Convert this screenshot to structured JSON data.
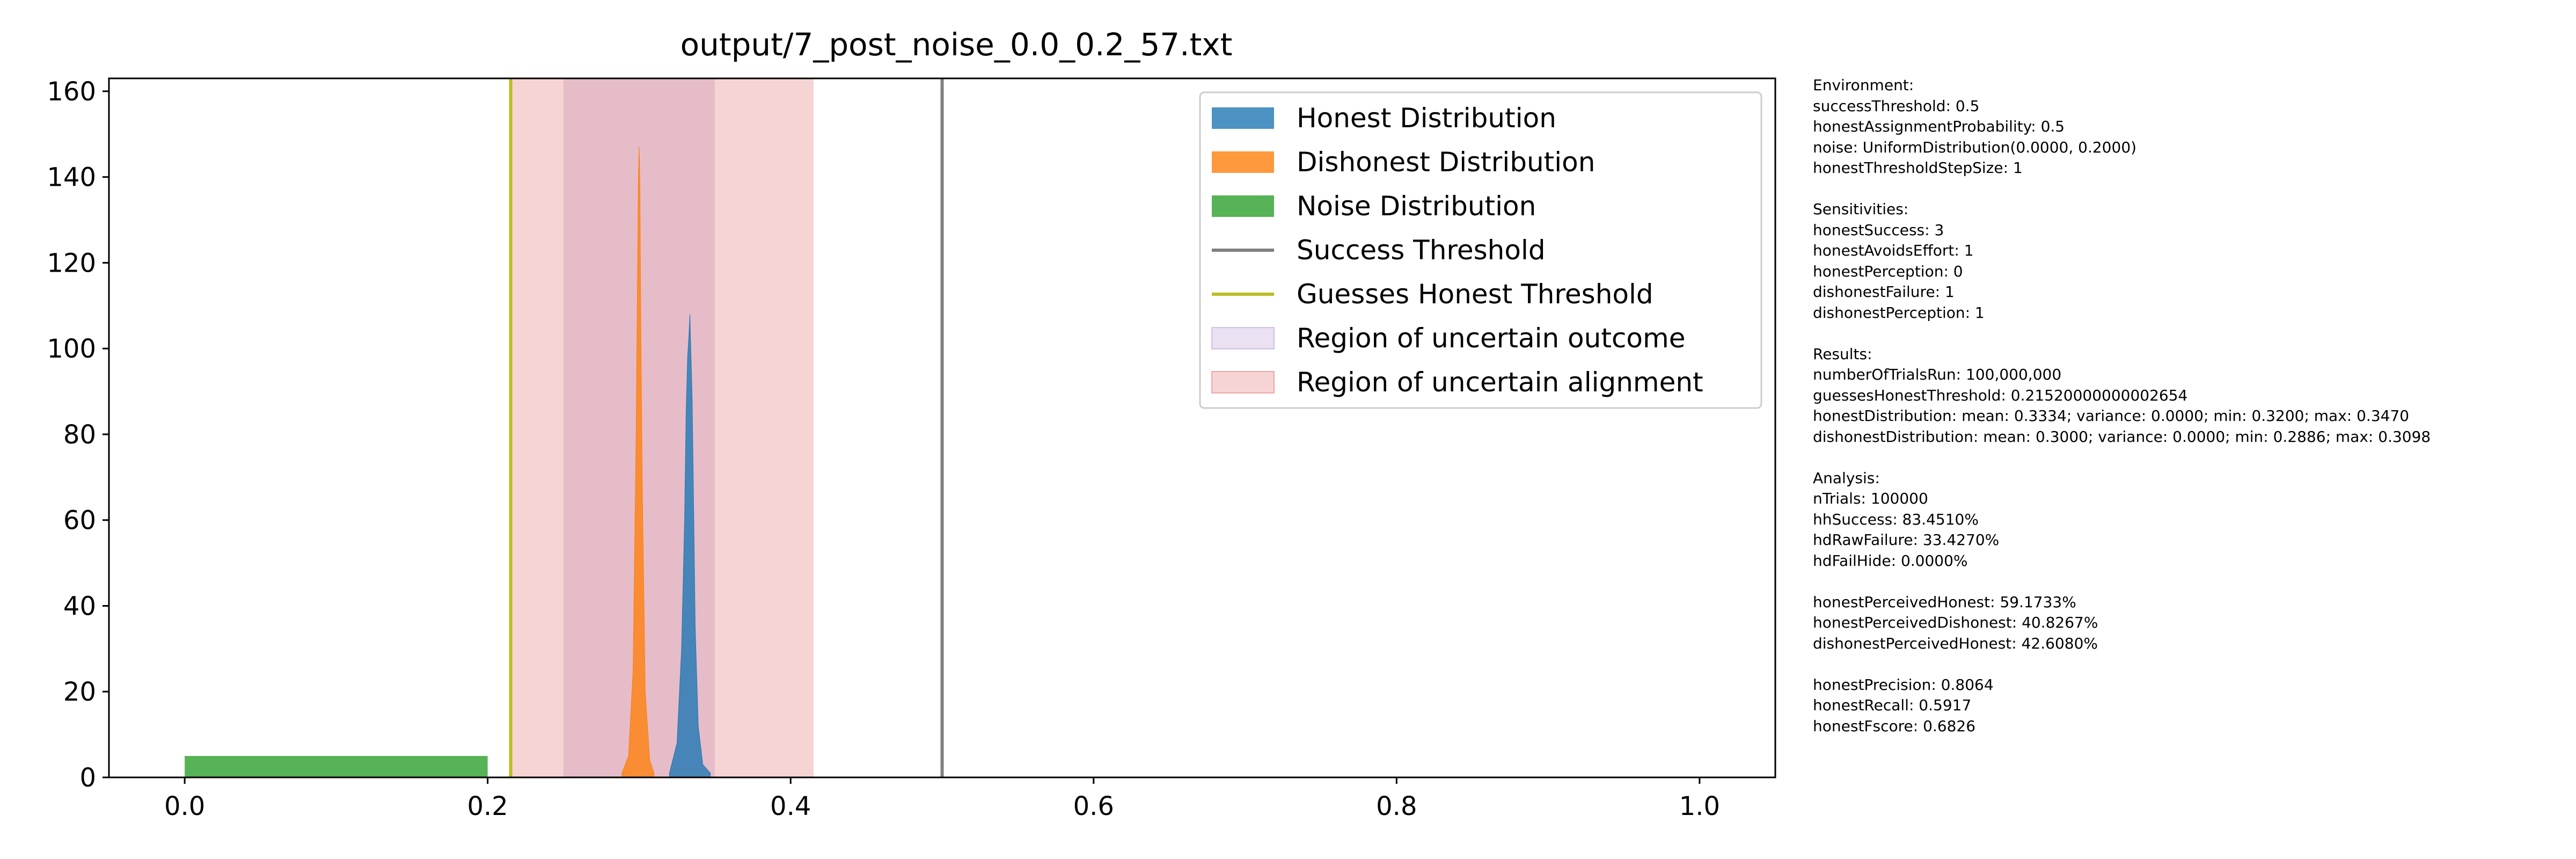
{
  "chart_data": {
    "type": "histogram",
    "title": "output/7_post_noise_0.0_0.2_57.txt",
    "xlabel": "",
    "ylabel": "",
    "xlim": [
      -0.05,
      1.05
    ],
    "ylim": [
      0,
      163
    ],
    "x_ticks": [
      0.0,
      0.2,
      0.4,
      0.6,
      0.8,
      1.0
    ],
    "x_tick_labels": [
      "0.0",
      "0.2",
      "0.4",
      "0.6",
      "0.8",
      "1.0"
    ],
    "y_ticks": [
      0,
      20,
      40,
      60,
      80,
      100,
      120,
      140,
      160
    ],
    "y_tick_labels": [
      "0",
      "20",
      "40",
      "60",
      "80",
      "100",
      "120",
      "140",
      "160"
    ],
    "grid": false,
    "legend_position": "upper right",
    "colors": {
      "honest": "#1f77b4",
      "dishonest": "#ff7f0e",
      "noise": "#2ca02c",
      "success_threshold": "#808080",
      "guess_threshold": "#bcbd22",
      "uncertain_outcome": "#9467bd",
      "uncertain_alignment": "#d62728"
    },
    "series": [
      {
        "name": "Honest Distribution",
        "key": "honest",
        "kind": "histogram",
        "x": [
          0.32,
          0.325,
          0.328,
          0.33,
          0.331,
          0.332,
          0.333,
          0.3335,
          0.334,
          0.3345,
          0.335,
          0.336,
          0.337,
          0.339,
          0.342,
          0.347
        ],
        "values": [
          1,
          8,
          30,
          60,
          85,
          98,
          104,
          108,
          101,
          95,
          88,
          62,
          35,
          12,
          3,
          1
        ]
      },
      {
        "name": "Dishonest Distribution",
        "key": "dishonest",
        "kind": "histogram",
        "x": [
          0.2886,
          0.293,
          0.296,
          0.298,
          0.299,
          0.2995,
          0.3,
          0.3005,
          0.301,
          0.302,
          0.304,
          0.307,
          0.3098
        ],
        "values": [
          1,
          5,
          25,
          80,
          120,
          140,
          147,
          138,
          110,
          70,
          20,
          4,
          1
        ]
      },
      {
        "name": "Noise Distribution",
        "key": "noise",
        "kind": "uniform",
        "range": [
          0.0,
          0.2
        ],
        "value": 5
      }
    ],
    "lines": [
      {
        "name": "Success Threshold",
        "key": "success_threshold",
        "x": 0.5
      },
      {
        "name": "Guesses Honest Threshold",
        "key": "guess_threshold",
        "x": 0.2152
      }
    ],
    "regions": [
      {
        "name": "Region of uncertain outcome",
        "key": "uncertain_outcome",
        "x": [
          0.25,
          0.35
        ],
        "alpha": 0.2
      },
      {
        "name": "Region of uncertain alignment",
        "key": "uncertain_alignment",
        "x": [
          0.2152,
          0.4152
        ],
        "alpha": 0.2
      }
    ],
    "legend": [
      {
        "label": "Honest Distribution",
        "key": "honest",
        "kind": "patch"
      },
      {
        "label": "Dishonest Distribution",
        "key": "dishonest",
        "kind": "patch"
      },
      {
        "label": "Noise Distribution",
        "key": "noise",
        "kind": "patch"
      },
      {
        "label": "Success Threshold",
        "key": "success_threshold",
        "kind": "line"
      },
      {
        "label": "Guesses Honest Threshold",
        "key": "guess_threshold",
        "kind": "line"
      },
      {
        "label": "Region of uncertain outcome",
        "key": "uncertain_outcome",
        "kind": "region"
      },
      {
        "label": "Region of uncertain alignment",
        "key": "uncertain_alignment",
        "kind": "region"
      }
    ]
  },
  "stats_lines": [
    "Environment:",
    "successThreshold: 0.5",
    "honestAssignmentProbability: 0.5",
    "noise: UniformDistribution(0.0000, 0.2000)",
    "honestThresholdStepSize: 1",
    "",
    "Sensitivities:",
    "honestSuccess: 3",
    "honestAvoidsEffort: 1",
    "honestPerception: 0",
    "dishonestFailure: 1",
    "dishonestPerception: 1",
    "",
    "Results:",
    "numberOfTrialsRun: 100,000,000",
    "guessesHonestThreshold: 0.21520000000002654",
    "honestDistribution: mean: 0.3334; variance: 0.0000; min: 0.3200; max: 0.3470",
    "dishonestDistribution: mean: 0.3000; variance: 0.0000; min: 0.2886; max: 0.3098",
    "",
    "Analysis:",
    "nTrials: 100000",
    "hhSuccess: 83.4510%",
    "hdRawFailure: 33.4270%",
    "hdFailHide: 0.0000%",
    "",
    "honestPerceivedHonest: 59.1733%",
    "honestPerceivedDishonest: 40.8267%",
    "dishonestPerceivedHonest: 42.6080%",
    "",
    "honestPrecision: 0.8064",
    "honestRecall: 0.5917",
    "honestFscore: 0.6826"
  ]
}
